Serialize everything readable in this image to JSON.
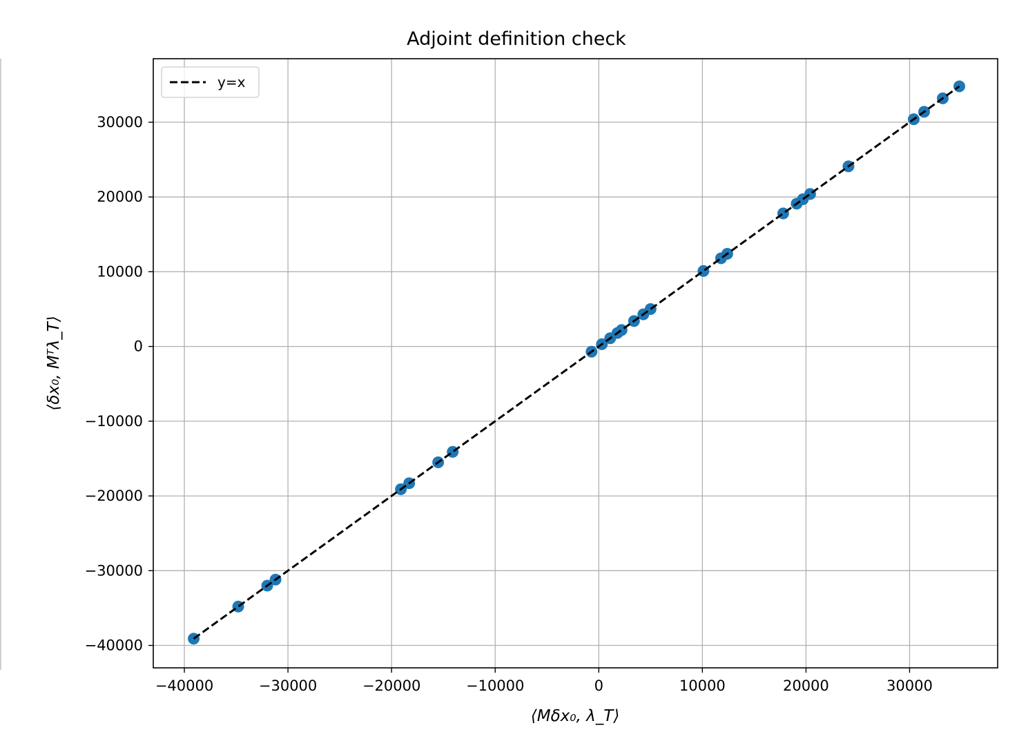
{
  "chart_data": {
    "type": "scatter",
    "title": "Adjoint definition check",
    "xlabel": "⟨Mδx₀, λ_T⟩",
    "ylabel": "⟨δx₀, Mᵀλ_T⟩",
    "xlim": [
      -43000,
      38500
    ],
    "ylim": [
      -43000,
      38500
    ],
    "xticks": [
      -40000,
      -30000,
      -20000,
      -10000,
      0,
      10000,
      20000,
      30000
    ],
    "yticks": [
      -40000,
      -30000,
      -20000,
      -10000,
      0,
      10000,
      20000,
      30000
    ],
    "xtick_labels": [
      "−40000",
      "−30000",
      "−20000",
      "−10000",
      "0",
      "10000",
      "20000",
      "30000"
    ],
    "ytick_labels": [
      "−40000",
      "−30000",
      "−20000",
      "−10000",
      "0",
      "10000",
      "20000",
      "30000"
    ],
    "grid": true,
    "legend": {
      "position": "top-left",
      "entries": [
        {
          "label": "y=x",
          "style": "dashed",
          "color": "#000000"
        }
      ]
    },
    "series": [
      {
        "kind": "points",
        "color": "#1f77b4",
        "points": [
          [
            -39100,
            -39100
          ],
          [
            -34800,
            -34800
          ],
          [
            -32000,
            -32000
          ],
          [
            -31200,
            -31200
          ],
          [
            -19100,
            -19100
          ],
          [
            -18300,
            -18300
          ],
          [
            -15500,
            -15500
          ],
          [
            -14100,
            -14100
          ],
          [
            -700,
            -700
          ],
          [
            300,
            300
          ],
          [
            1100,
            1100
          ],
          [
            1800,
            1800
          ],
          [
            2200,
            2200
          ],
          [
            3400,
            3400
          ],
          [
            4300,
            4300
          ],
          [
            5000,
            5000
          ],
          [
            10100,
            10100
          ],
          [
            11800,
            11800
          ],
          [
            12400,
            12400
          ],
          [
            17800,
            17800
          ],
          [
            19100,
            19100
          ],
          [
            19700,
            19700
          ],
          [
            20400,
            20400
          ],
          [
            24100,
            24100
          ],
          [
            30400,
            30400
          ],
          [
            31400,
            31400
          ],
          [
            33200,
            33200
          ],
          [
            34800,
            34800
          ]
        ]
      },
      {
        "name": "y=x",
        "kind": "line",
        "color": "#000000",
        "dash": "dashed",
        "x": [
          -39100,
          34800
        ],
        "y": [
          -39100,
          34800
        ]
      }
    ]
  }
}
